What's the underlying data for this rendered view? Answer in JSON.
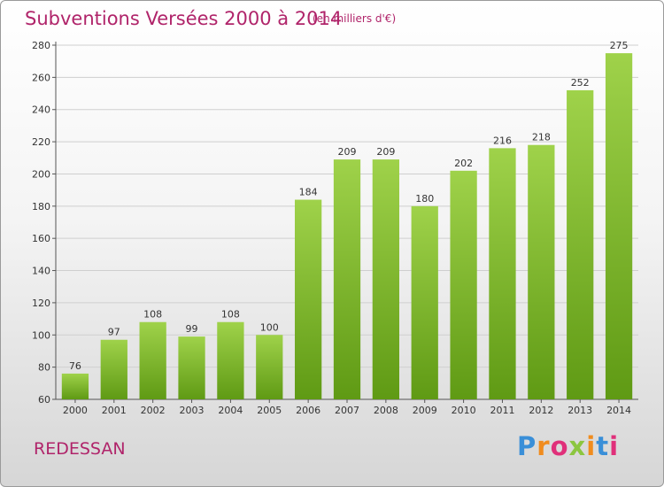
{
  "header": {
    "title": "Subventions Versées 2000 à 2014",
    "unit": "(en milliers d'€)"
  },
  "footer": {
    "commune": "REDESSAN",
    "logo_text": "Proxiti",
    "logo_colors": [
      "#3a8fd8",
      "#f08c1e",
      "#e0307a",
      "#8cc63f",
      "#f08c1e",
      "#3a8fd8",
      "#e0307a"
    ]
  },
  "colors": {
    "bar_top": "#9fd24a",
    "bar_bottom": "#5f9a14",
    "title": "#b0246a",
    "grid": "#cfcfcf"
  },
  "chart_data": {
    "type": "bar",
    "categories": [
      "2000",
      "2001",
      "2002",
      "2003",
      "2004",
      "2005",
      "2006",
      "2007",
      "2008",
      "2009",
      "2010",
      "2011",
      "2012",
      "2013",
      "2014"
    ],
    "values": [
      76,
      97,
      108,
      99,
      108,
      100,
      184,
      209,
      209,
      180,
      202,
      216,
      218,
      252,
      275
    ],
    "yticks": [
      60,
      80,
      100,
      120,
      140,
      160,
      180,
      200,
      220,
      240,
      260,
      280
    ],
    "ylim": [
      60,
      280
    ],
    "grid": true,
    "title": "Subventions Versées 2000 à 2014",
    "xlabel": "",
    "ylabel": ""
  }
}
